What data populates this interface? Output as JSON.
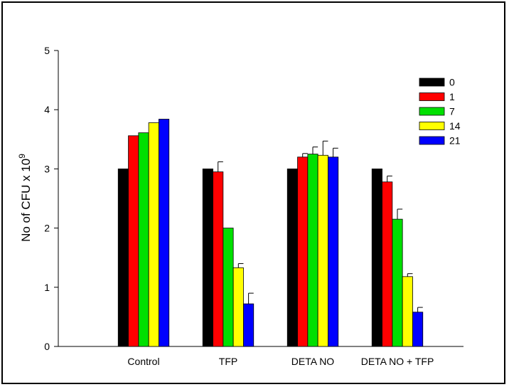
{
  "chart_data": {
    "type": "bar",
    "title": "",
    "xlabel": "",
    "ylabel": "No of CFU x 10",
    "ylabel_exponent": "9",
    "ylim": [
      0,
      5
    ],
    "yticks": [
      "0",
      "1",
      "2",
      "3",
      "4",
      "5"
    ],
    "categories": [
      "Control",
      "TFP",
      "DETA NO",
      "DETA NO + TFP"
    ],
    "legend_position": "top-right",
    "grid": false,
    "series": [
      {
        "name": "0",
        "color": "#000000",
        "values": [
          3.0,
          3.0,
          3.0,
          3.0
        ],
        "errors": [
          0,
          0,
          0,
          0
        ]
      },
      {
        "name": "1",
        "color": "#ff0000",
        "values": [
          3.56,
          2.95,
          3.2,
          2.78
        ],
        "errors": [
          0,
          0.17,
          0.06,
          0.1
        ]
      },
      {
        "name": "7",
        "color": "#00e000",
        "values": [
          3.61,
          2.0,
          3.25,
          2.15
        ],
        "errors": [
          0,
          0,
          0.12,
          0.17
        ]
      },
      {
        "name": "14",
        "color": "#ffff00",
        "values": [
          3.78,
          1.33,
          3.23,
          1.18
        ],
        "errors": [
          0,
          0.07,
          0.24,
          0.05
        ]
      },
      {
        "name": "21",
        "color": "#0000ff",
        "values": [
          3.84,
          0.72,
          3.2,
          0.58
        ],
        "errors": [
          0,
          0.18,
          0.15,
          0.08
        ]
      }
    ]
  }
}
